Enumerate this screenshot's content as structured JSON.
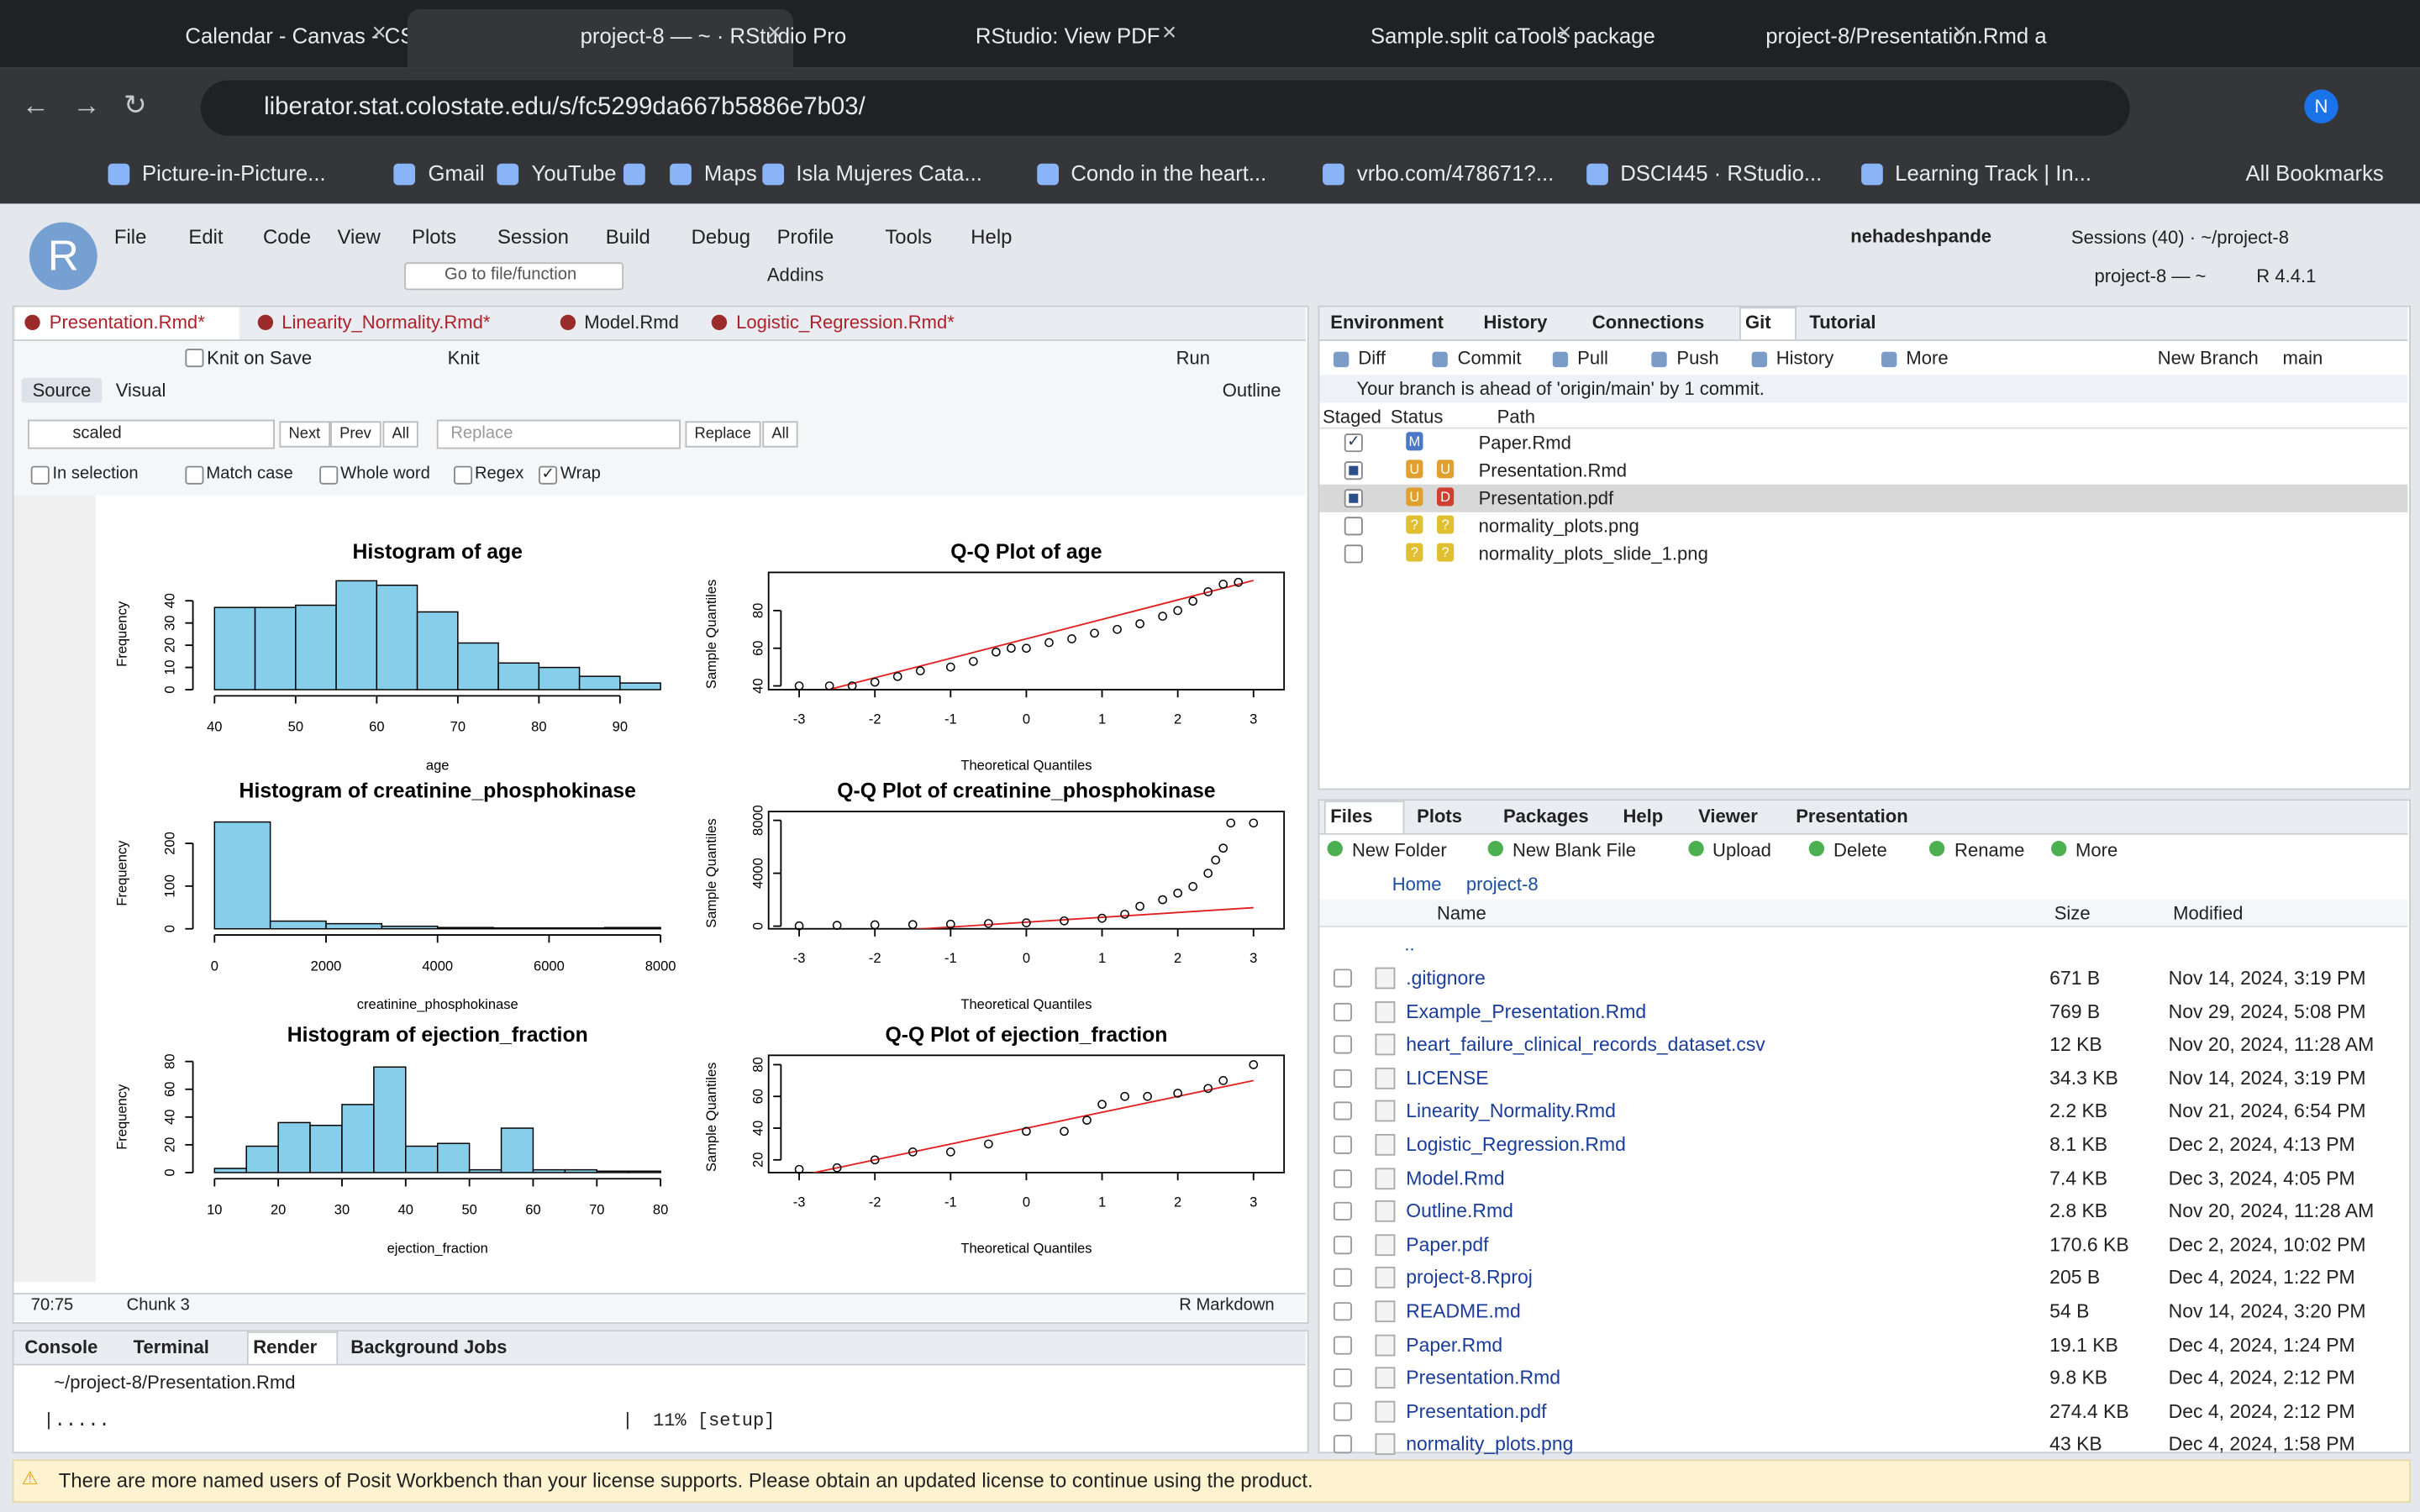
{
  "browser": {
    "tabs": [
      "Calendar - Canvas - CSU",
      "project-8 — ~ · RStudio Pro",
      "RStudio: View PDF",
      "Sample.split caTools package",
      "project-8/Presentation.Rmd a"
    ],
    "active_tab": 1,
    "url": "liberator.stat.colostate.edu/s/fc5299da667b5886e7b03/",
    "bookmarks": [
      "Picture-in-Picture...",
      "Gmail",
      "YouTube",
      "",
      "Maps",
      "Isla Mujeres Cata...",
      "Condo in the heart...",
      "vrbo.com/478671?...",
      "DSCI445 · RStudio...",
      "Learning Track | In..."
    ],
    "all_bookmarks": "All Bookmarks",
    "profile": "N"
  },
  "rstudio": {
    "menu": [
      "File",
      "Edit",
      "Code",
      "View",
      "Plots",
      "Session",
      "Build",
      "Debug",
      "Profile",
      "Tools",
      "Help"
    ],
    "user": "nehadeshpande",
    "sessions": "Sessions (40) · ~/project-8",
    "project": "project-8 — ~",
    "r_version": "R 4.4.1",
    "goto": "Go to file/function",
    "addins": "Addins",
    "editor": {
      "tabs": [
        "Presentation.Rmd*",
        "Linearity_Normality.Rmd*",
        "Model.Rmd",
        "Logistic_Regression.Rmd*"
      ],
      "knit_on_save": "Knit on Save",
      "knit": "Knit",
      "run": "Run",
      "source": "Source",
      "visual": "Visual",
      "outline": "Outline",
      "find": {
        "query": "scaled",
        "next": "Next",
        "prev": "Prev",
        "all": "All",
        "replace_placeholder": "Replace",
        "replace": "Replace",
        "replace_all": "All"
      },
      "options": [
        {
          "label": "In selection",
          "checked": false
        },
        {
          "label": "Match case",
          "checked": false
        },
        {
          "label": "Whole word",
          "checked": false
        },
        {
          "label": "Regex",
          "checked": false
        },
        {
          "label": "Wrap",
          "checked": true
        }
      ],
      "position": "70:75",
      "chunk": "Chunk 3",
      "mode": "R Markdown"
    },
    "console": {
      "tabs": [
        "Console",
        "Terminal",
        "Render",
        "Background Jobs"
      ],
      "path": "~/project-8/Presentation.Rmd",
      "progress": "|.....",
      "bar_end": "|",
      "status": "11% [setup]"
    },
    "git": {
      "tabs": [
        "Environment",
        "History",
        "Connections",
        "Git",
        "Tutorial"
      ],
      "active": 3,
      "toolbar": [
        "Diff",
        "Commit",
        "Pull",
        "Push",
        "History",
        "More"
      ],
      "new_branch": "New Branch",
      "branch": "main",
      "message": "Your branch is ahead of 'origin/main' by 1 commit.",
      "columns": [
        "Staged",
        "Status",
        "Path"
      ],
      "files": [
        {
          "path": "Paper.Rmd",
          "status": [
            "M"
          ],
          "staged": "checked",
          "selected": false
        },
        {
          "path": "Presentation.Rmd",
          "status": [
            "U",
            "U"
          ],
          "staged": "partial",
          "selected": false
        },
        {
          "path": "Presentation.pdf",
          "status": [
            "U",
            "D"
          ],
          "staged": "partial",
          "selected": true
        },
        {
          "path": "normality_plots.png",
          "status": [
            "?",
            "?"
          ],
          "staged": "none",
          "selected": false
        },
        {
          "path": "normality_plots_slide_1.png",
          "status": [
            "?",
            "?"
          ],
          "staged": "none",
          "selected": false
        }
      ]
    },
    "files": {
      "tabs": [
        "Files",
        "Plots",
        "Packages",
        "Help",
        "Viewer",
        "Presentation"
      ],
      "toolbar": [
        "New Folder",
        "New Blank File",
        "Upload",
        "Delete",
        "Rename",
        "More"
      ],
      "breadcrumb": [
        "Home",
        "project-8"
      ],
      "columns": [
        "Name",
        "Size",
        "Modified"
      ],
      "up": "..",
      "rows": [
        [
          ".gitignore",
          "671 B",
          "Nov 14, 2024, 3:19 PM"
        ],
        [
          "Example_Presentation.Rmd",
          "769 B",
          "Nov 29, 2024, 5:08 PM"
        ],
        [
          "heart_failure_clinical_records_dataset.csv",
          "12 KB",
          "Nov 20, 2024, 11:28 AM"
        ],
        [
          "LICENSE",
          "34.3 KB",
          "Nov 14, 2024, 3:19 PM"
        ],
        [
          "Linearity_Normality.Rmd",
          "2.2 KB",
          "Nov 21, 2024, 6:54 PM"
        ],
        [
          "Logistic_Regression.Rmd",
          "8.1 KB",
          "Dec 2, 2024, 4:13 PM"
        ],
        [
          "Model.Rmd",
          "7.4 KB",
          "Dec 3, 2024, 4:05 PM"
        ],
        [
          "Outline.Rmd",
          "2.8 KB",
          "Nov 20, 2024, 11:28 AM"
        ],
        [
          "Paper.pdf",
          "170.6 KB",
          "Dec 2, 2024, 10:02 PM"
        ],
        [
          "project-8.Rproj",
          "205 B",
          "Dec 4, 2024, 1:22 PM"
        ],
        [
          "README.md",
          "54 B",
          "Nov 14, 2024, 3:20 PM"
        ],
        [
          "Paper.Rmd",
          "19.1 KB",
          "Dec 4, 2024, 1:24 PM"
        ],
        [
          "Presentation.Rmd",
          "9.8 KB",
          "Dec 4, 2024, 2:12 PM"
        ],
        [
          "Presentation.pdf",
          "274.4 KB",
          "Dec 4, 2024, 2:12 PM"
        ],
        [
          "normality_plots.png",
          "43 KB",
          "Dec 4, 2024, 1:58 PM"
        ]
      ]
    },
    "banner": "There are more named users of Posit Workbench than your license supports. Please obtain an updated license to continue using the product."
  },
  "plots": [
    {
      "type": "histogram",
      "title": "Histogram of age",
      "xlabel": "age",
      "ylabel": "Frequency",
      "bins": [
        40,
        45,
        50,
        55,
        60,
        65,
        70,
        75,
        80,
        85,
        90,
        95
      ],
      "counts": [
        37,
        37,
        38,
        49,
        47,
        35,
        21,
        12,
        10,
        6,
        3
      ],
      "xlim": [
        40,
        95
      ],
      "xticks": [
        40,
        50,
        60,
        70,
        80,
        90
      ],
      "ylim": [
        0,
        50
      ],
      "yticks": [
        0,
        10,
        20,
        30,
        40
      ],
      "color": "#87ceeb"
    },
    {
      "type": "qq",
      "title": "Q-Q Plot of age",
      "xlabel": "Theoretical Quantiles",
      "ylabel": "Sample Quantiles",
      "x": [
        -3,
        -2.6,
        -2.3,
        -2,
        -1.7,
        -1.4,
        -1,
        -0.7,
        -0.4,
        -0.2,
        0,
        0.3,
        0.6,
        0.9,
        1.2,
        1.5,
        1.8,
        2,
        2.2,
        2.4,
        2.6,
        2.8
      ],
      "y": [
        40,
        40,
        40,
        42,
        45,
        48,
        50,
        53,
        58,
        60,
        60,
        63,
        65,
        68,
        70,
        73,
        77,
        80,
        85,
        90,
        94,
        95
      ],
      "line_x": [
        -3,
        3
      ],
      "line_y": [
        34,
        96
      ],
      "xlim": [
        -3.2,
        3.2
      ],
      "xticks": [
        -3,
        -2,
        -1,
        0,
        1,
        2,
        3
      ],
      "ylim": [
        38,
        97
      ],
      "yticks": [
        40,
        60,
        80
      ]
    },
    {
      "type": "histogram",
      "title": "Histogram of creatinine_phosphokinase",
      "xlabel": "creatinine_phosphokinase",
      "ylabel": "Frequency",
      "bins": [
        0,
        1000,
        2000,
        3000,
        4000,
        5000,
        6000,
        7000,
        8000
      ],
      "counts": [
        250,
        18,
        12,
        6,
        3,
        2,
        2,
        3
      ],
      "xlim": [
        0,
        8000
      ],
      "xticks": [
        0,
        2000,
        4000,
        6000,
        8000
      ],
      "ylim": [
        0,
        260
      ],
      "yticks": [
        0,
        100,
        200
      ],
      "color": "#87ceeb"
    },
    {
      "type": "qq",
      "title": "Q-Q Plot of creatinine_phosphokinase",
      "xlabel": "Theoretical Quantiles",
      "ylabel": "Sample Quantiles",
      "x": [
        -3,
        -2.5,
        -2,
        -1.5,
        -1,
        -0.5,
        0,
        0.5,
        1,
        1.3,
        1.5,
        1.8,
        2,
        2.2,
        2.4,
        2.5,
        2.6,
        2.7,
        3
      ],
      "y": [
        20,
        60,
        100,
        120,
        150,
        200,
        250,
        400,
        600,
        900,
        1500,
        2000,
        2500,
        3000,
        4000,
        5000,
        5900,
        7800,
        7800
      ],
      "line_x": [
        -3,
        3
      ],
      "line_y": [
        -800,
        1400
      ],
      "xlim": [
        -3.2,
        3.2
      ],
      "xticks": [
        -3,
        -2,
        -1,
        0,
        1,
        2,
        3
      ],
      "ylim": [
        -200,
        8200
      ],
      "yticks": [
        0,
        4000,
        8000
      ]
    },
    {
      "type": "histogram",
      "title": "Histogram of ejection_fraction",
      "xlabel": "ejection_fraction",
      "ylabel": "Frequency",
      "bins": [
        10,
        15,
        20,
        25,
        30,
        35,
        40,
        45,
        50,
        55,
        60,
        65,
        70,
        75,
        80
      ],
      "counts": [
        3,
        19,
        36,
        34,
        49,
        76,
        19,
        21,
        2,
        32,
        2,
        2,
        1,
        1
      ],
      "xlim": [
        10,
        80
      ],
      "xticks": [
        10,
        20,
        30,
        40,
        50,
        60,
        70,
        80
      ],
      "ylim": [
        0,
        80
      ],
      "yticks": [
        0,
        20,
        40,
        60,
        80
      ],
      "color": "#87ceeb"
    },
    {
      "type": "qq",
      "title": "Q-Q Plot of ejection_fraction",
      "xlabel": "Theoretical Quantiles",
      "ylabel": "Sample Quantiles",
      "x": [
        -3,
        -2.5,
        -2,
        -1.5,
        -1,
        -0.5,
        0,
        0.5,
        0.8,
        1,
        1.3,
        1.6,
        2,
        2.4,
        2.6,
        3
      ],
      "y": [
        14,
        15,
        20,
        25,
        25,
        30,
        38,
        38,
        45,
        55,
        60,
        60,
        62,
        65,
        70,
        80
      ],
      "line_x": [
        -3,
        3
      ],
      "line_y": [
        10,
        70
      ],
      "xlim": [
        -3.2,
        3.2
      ],
      "xticks": [
        -3,
        -2,
        -1,
        0,
        1,
        2,
        3
      ],
      "ylim": [
        12,
        82
      ],
      "yticks": [
        20,
        40,
        60,
        80
      ]
    }
  ]
}
